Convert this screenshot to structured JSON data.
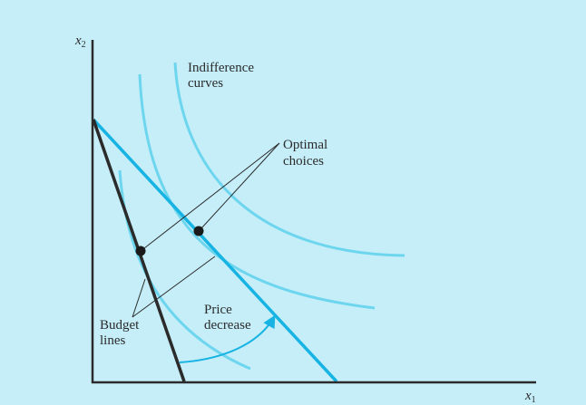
{
  "axes": {
    "x_label": "x",
    "x_subscript": "1",
    "y_label": "x",
    "y_subscript": "2"
  },
  "labels": {
    "indifference_line1": "Indifference",
    "indifference_line2": "curves",
    "optimal_line1": "Optimal",
    "optimal_line2": "choices",
    "price_line1": "Price",
    "price_line2": "decrease",
    "budget_line1": "Budget",
    "budget_line2": "lines"
  },
  "colors": {
    "background": "#c5eef9",
    "axis": "#2b2b2b",
    "original_budget_line": "#2b2b2b",
    "new_budget_line": "#16b3e3",
    "indifference_curves": "#6dd6ee",
    "arrow": "#16b3e3",
    "optimal_point": "#1a1a1a"
  }
}
